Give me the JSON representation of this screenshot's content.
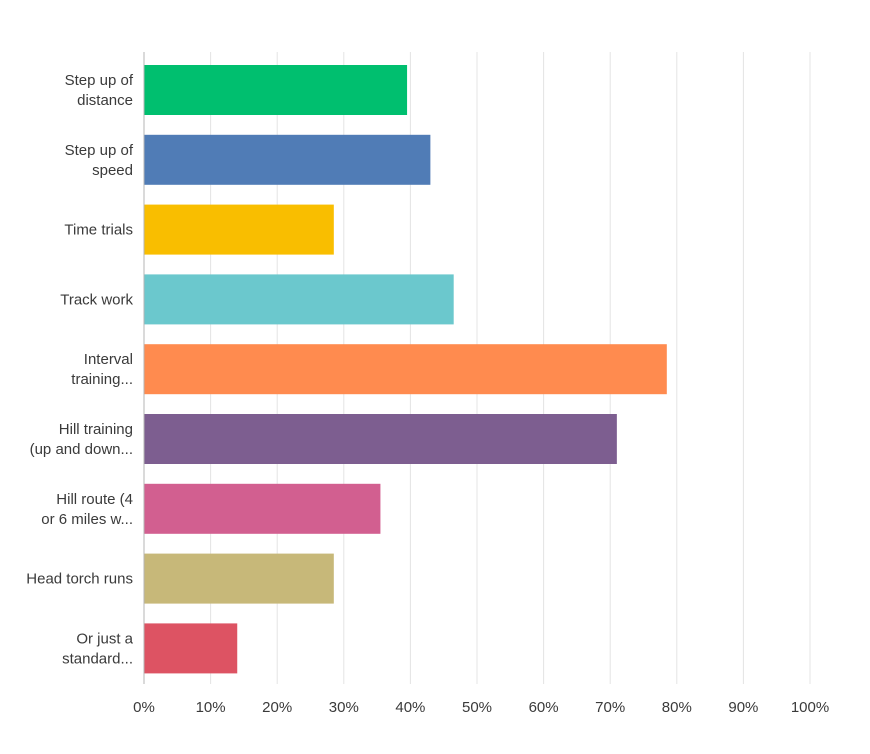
{
  "chart_data": {
    "type": "bar",
    "orientation": "horizontal",
    "categories": [
      [
        "Step up of",
        "distance"
      ],
      [
        "Step up of",
        "speed"
      ],
      [
        "Time trials"
      ],
      [
        "Track work"
      ],
      [
        "Interval",
        "training..."
      ],
      [
        "Hill training",
        "(up and down..."
      ],
      [
        "Hill route (4",
        "or 6 miles w..."
      ],
      [
        "Head torch runs"
      ],
      [
        "Or just a",
        "standard..."
      ]
    ],
    "values": [
      39.5,
      43.0,
      28.5,
      46.5,
      78.5,
      71.0,
      35.5,
      28.5,
      14.0
    ],
    "colors": [
      "#00bf6f",
      "#507cb6",
      "#f9be00",
      "#6bc8cd",
      "#ff8b4f",
      "#7d5e90",
      "#d25f90",
      "#c7b879",
      "#dd5363"
    ],
    "x_ticks": [
      "0%",
      "10%",
      "20%",
      "30%",
      "40%",
      "50%",
      "60%",
      "70%",
      "80%",
      "90%",
      "100%"
    ],
    "xlim": [
      0,
      100
    ],
    "grid": true,
    "title": "",
    "xlabel": "",
    "ylabel": ""
  }
}
